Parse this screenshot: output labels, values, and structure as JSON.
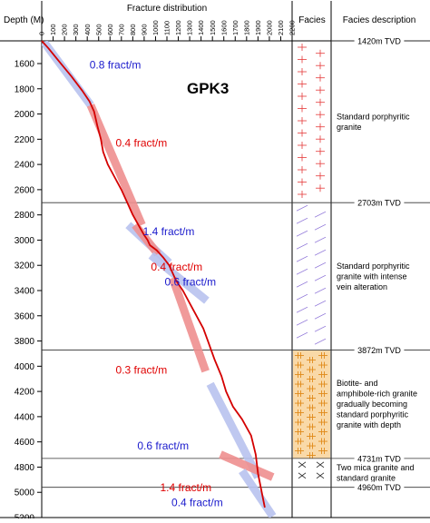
{
  "chart_data": {
    "type": "line",
    "title": "GPK3",
    "panel_headers": {
      "depth": "Depth (M)",
      "distribution": "Fracture distribution",
      "facies": "Facies",
      "description": "Facies description"
    },
    "x_ticks": [
      "0",
      "100",
      "200",
      "300",
      "400",
      "500",
      "600",
      "700",
      "800",
      "900",
      "1000",
      "1100",
      "1200",
      "1300",
      "1400",
      "1500",
      "1600",
      "1700",
      "1800",
      "1900",
      "2000",
      "2100",
      "2200"
    ],
    "x_tick_values": [
      0,
      100,
      200,
      300,
      400,
      500,
      600,
      700,
      800,
      900,
      1000,
      1100,
      1200,
      1300,
      1400,
      1500,
      1600,
      1700,
      1800,
      1900,
      2000,
      2100,
      2200
    ],
    "xlim": [
      0,
      2200
    ],
    "y_ticks": [
      "1600",
      "1800",
      "2000",
      "2200",
      "2400",
      "2600",
      "2800",
      "3000",
      "3200",
      "3400",
      "3600",
      "3800",
      "4000",
      "4200",
      "4400",
      "4600",
      "4800",
      "5000",
      "5200"
    ],
    "y_tick_values": [
      1600,
      1800,
      2000,
      2200,
      2400,
      2600,
      2800,
      3000,
      3200,
      3400,
      3600,
      3800,
      4000,
      4200,
      4400,
      4600,
      4800,
      5000,
      5200
    ],
    "ylim": [
      1420,
      5200
    ],
    "cumulative_curve": {
      "color": "#d40000",
      "x": [
        0,
        60,
        150,
        260,
        360,
        420,
        460,
        490,
        520,
        540,
        580,
        640,
        700,
        750,
        800,
        850,
        900,
        930,
        950,
        1010,
        1070,
        1120,
        1180,
        1240,
        1300,
        1360,
        1420,
        1460,
        1520,
        1580,
        1620,
        1680,
        1760,
        1840,
        1880,
        1900,
        1960
      ],
      "y": [
        1420,
        1480,
        1580,
        1700,
        1820,
        1900,
        1980,
        2100,
        2200,
        2300,
        2400,
        2500,
        2600,
        2700,
        2800,
        2880,
        2960,
        3000,
        3040,
        3080,
        3140,
        3200,
        3320,
        3400,
        3500,
        3600,
        3700,
        3800,
        3950,
        4080,
        4200,
        4320,
        4420,
        4550,
        4700,
        4850,
        5120
      ]
    },
    "rate_fits": [
      {
        "label": "0.8 fract/m",
        "color": "#1a1acc",
        "band_color": "#b9c3ef",
        "x": [
          20,
          430
        ],
        "y": [
          1430,
          1930
        ]
      },
      {
        "label": "0.4 fract/m",
        "color": "#e00000",
        "band_color": "#ef9090",
        "x": [
          430,
          880
        ],
        "y": [
          1930,
          2880
        ]
      },
      {
        "label": "1.4 fract/m",
        "color": "#1a1acc",
        "band_color": "#b9c3ef",
        "x": [
          760,
          1120
        ],
        "y": [
          2880,
          3180
        ]
      },
      {
        "label": "0.4 fract/m",
        "color": "#e00000",
        "band_color": "#ef9090",
        "x": [
          820,
          1020
        ],
        "y": [
          2880,
          3110
        ]
      },
      {
        "label": "0.6 fract/m",
        "color": "#1a1acc",
        "band_color": "#b9c3ef",
        "x": [
          960,
          1450
        ],
        "y": [
          3120,
          3480
        ]
      },
      {
        "label": "0.3 fract/m",
        "color": "#e00000",
        "band_color": "#ef9090",
        "x": [
          1150,
          1440
        ],
        "y": [
          3300,
          4040
        ]
      },
      {
        "label": "0.6 fract/m",
        "color": "#1a1acc",
        "band_color": "#b9c3ef",
        "x": [
          1480,
          1900
        ],
        "y": [
          4140,
          4880
        ]
      },
      {
        "label": "1.4 fract/m",
        "color": "#e00000",
        "band_color": "#ef9090",
        "x": [
          1570,
          2030
        ],
        "y": [
          4700,
          4880
        ]
      },
      {
        "label": "0.4 fract/m",
        "color": "#1a1acc",
        "band_color": "#b9c3ef",
        "x": [
          1760,
          2030
        ],
        "y": [
          4830,
          5190
        ]
      }
    ],
    "rate_label_positions_data": [
      {
        "x": 420,
        "y": 1640
      },
      {
        "x": 650,
        "y": 2260
      },
      {
        "x": 890,
        "y": 2960
      },
      {
        "x": 960,
        "y": 3240
      },
      {
        "x": 1080,
        "y": 3360
      },
      {
        "x": 650,
        "y": 4060
      },
      {
        "x": 840,
        "y": 4660
      },
      {
        "x": 1040,
        "y": 4990
      },
      {
        "x": 1140,
        "y": 5110
      }
    ],
    "facies": [
      {
        "top": 1420,
        "bottom": 2703,
        "boundary_label": "1420m TVD",
        "description": [
          "Standard porphyritic",
          "granite"
        ],
        "pattern": "red-crosses"
      },
      {
        "top": 2703,
        "bottom": 3872,
        "boundary_label": "2703m TVD",
        "description": [
          "Standard porphyritic",
          "granite with intense",
          "vein alteration"
        ],
        "pattern": "purple-slashes"
      },
      {
        "top": 3872,
        "bottom": 4731,
        "boundary_label": "3872m TVD",
        "description": [
          "Biotite- and",
          "amphibole-rich granite",
          "gradually becoming",
          "standard porphyritic",
          "granite with depth"
        ],
        "pattern": "orange-crosses"
      },
      {
        "top": 4731,
        "bottom": 4960,
        "boundary_label": "4731m TVD",
        "description": [
          "Two mica granite and",
          "standard granite"
        ],
        "pattern": "black-x"
      },
      {
        "top": 4960,
        "bottom": 5200,
        "boundary_label": "4960m TVD",
        "description": [],
        "pattern": "none"
      }
    ],
    "grid": false
  }
}
